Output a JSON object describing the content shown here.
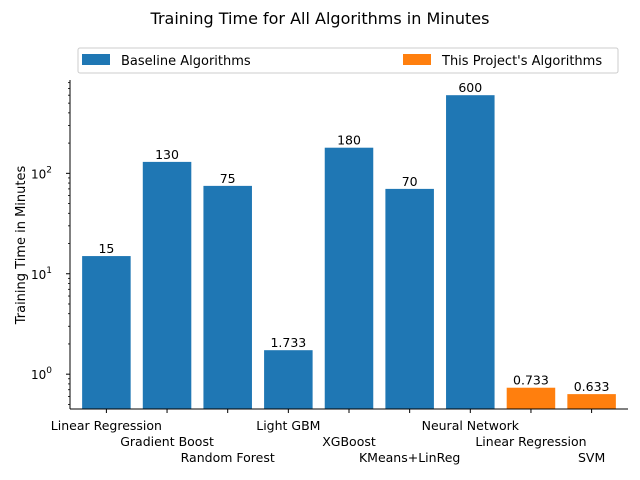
{
  "chart_data": {
    "type": "bar",
    "title": "Training Time for All Algorithms in Minutes",
    "xlabel": "",
    "ylabel": "Training Time in Minutes",
    "yscale": "log",
    "ylim": [
      0.45,
      850
    ],
    "yticks": [
      {
        "value": 1,
        "base": "10",
        "exp": "0"
      },
      {
        "value": 10,
        "base": "10",
        "exp": "1"
      },
      {
        "value": 100,
        "base": "10",
        "exp": "2"
      }
    ],
    "grid": false,
    "legend_position": "top",
    "legend": [
      {
        "name": "Baseline Algorithms",
        "color": "#1f77b4"
      },
      {
        "name": "This Project's Algorithms",
        "color": "#ff7f0e"
      }
    ],
    "categories": [
      "Linear Regression",
      "Gradient Boost",
      "Random Forest",
      "Light GBM",
      "XGBoost",
      "KMeans+LinReg",
      "Neural Network",
      "Linear Regression",
      "SVM"
    ],
    "values": [
      15,
      130,
      75,
      1.733,
      180,
      70,
      600,
      0.733,
      0.633
    ],
    "value_labels": [
      "15",
      "130",
      "75",
      "1.733",
      "180",
      "70",
      "600",
      "0.733",
      "0.633"
    ],
    "groups": [
      0,
      0,
      0,
      0,
      0,
      0,
      0,
      1,
      1
    ]
  }
}
